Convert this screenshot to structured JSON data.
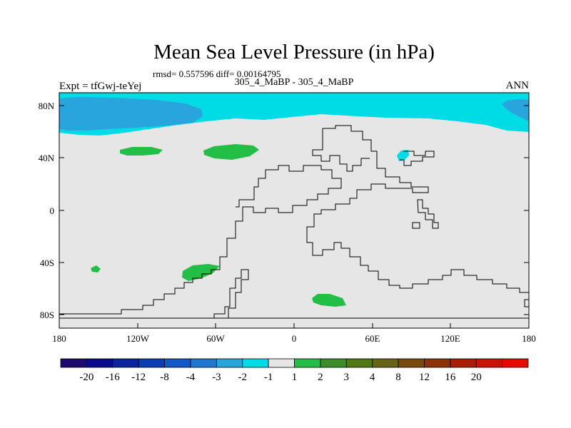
{
  "title": "Mean Sea Level Pressure (in hPa)",
  "stats_line": "rmsd= 0.557596 diff= 0.00164795",
  "left_label": "Expt = tfGwj-teYej",
  "center_label": "305_4_MaBP - 305_4_MaBP",
  "right_label": "ANN",
  "y_ticks": [
    "80N",
    "40N",
    "0",
    "40S",
    "80S"
  ],
  "x_ticks": [
    "180",
    "120W",
    "60W",
    "0",
    "60E",
    "120E",
    "180"
  ],
  "colorbar": {
    "colors": [
      "#1e0a6e",
      "#0a0a8c",
      "#0c23a0",
      "#0a3cb4",
      "#0f5ac8",
      "#1e78d2",
      "#28a5dc",
      "#00dce6",
      "#e6e6e6",
      "#23be46",
      "#3c8c28",
      "#507814",
      "#646414",
      "#784b0a",
      "#8c3205",
      "#aa1e05",
      "#c81405",
      "#e60a00"
    ],
    "labels": [
      "-20",
      "-16",
      "-12",
      "-8",
      "-4",
      "-3",
      "-2",
      "-1",
      "1",
      "2",
      "3",
      "4",
      "8",
      "12",
      "16",
      "20"
    ]
  },
  "colors": {
    "background": "#e6e6e6",
    "cyan": "#00dce6",
    "blue": "#28a5dc",
    "green": "#23be46"
  }
}
